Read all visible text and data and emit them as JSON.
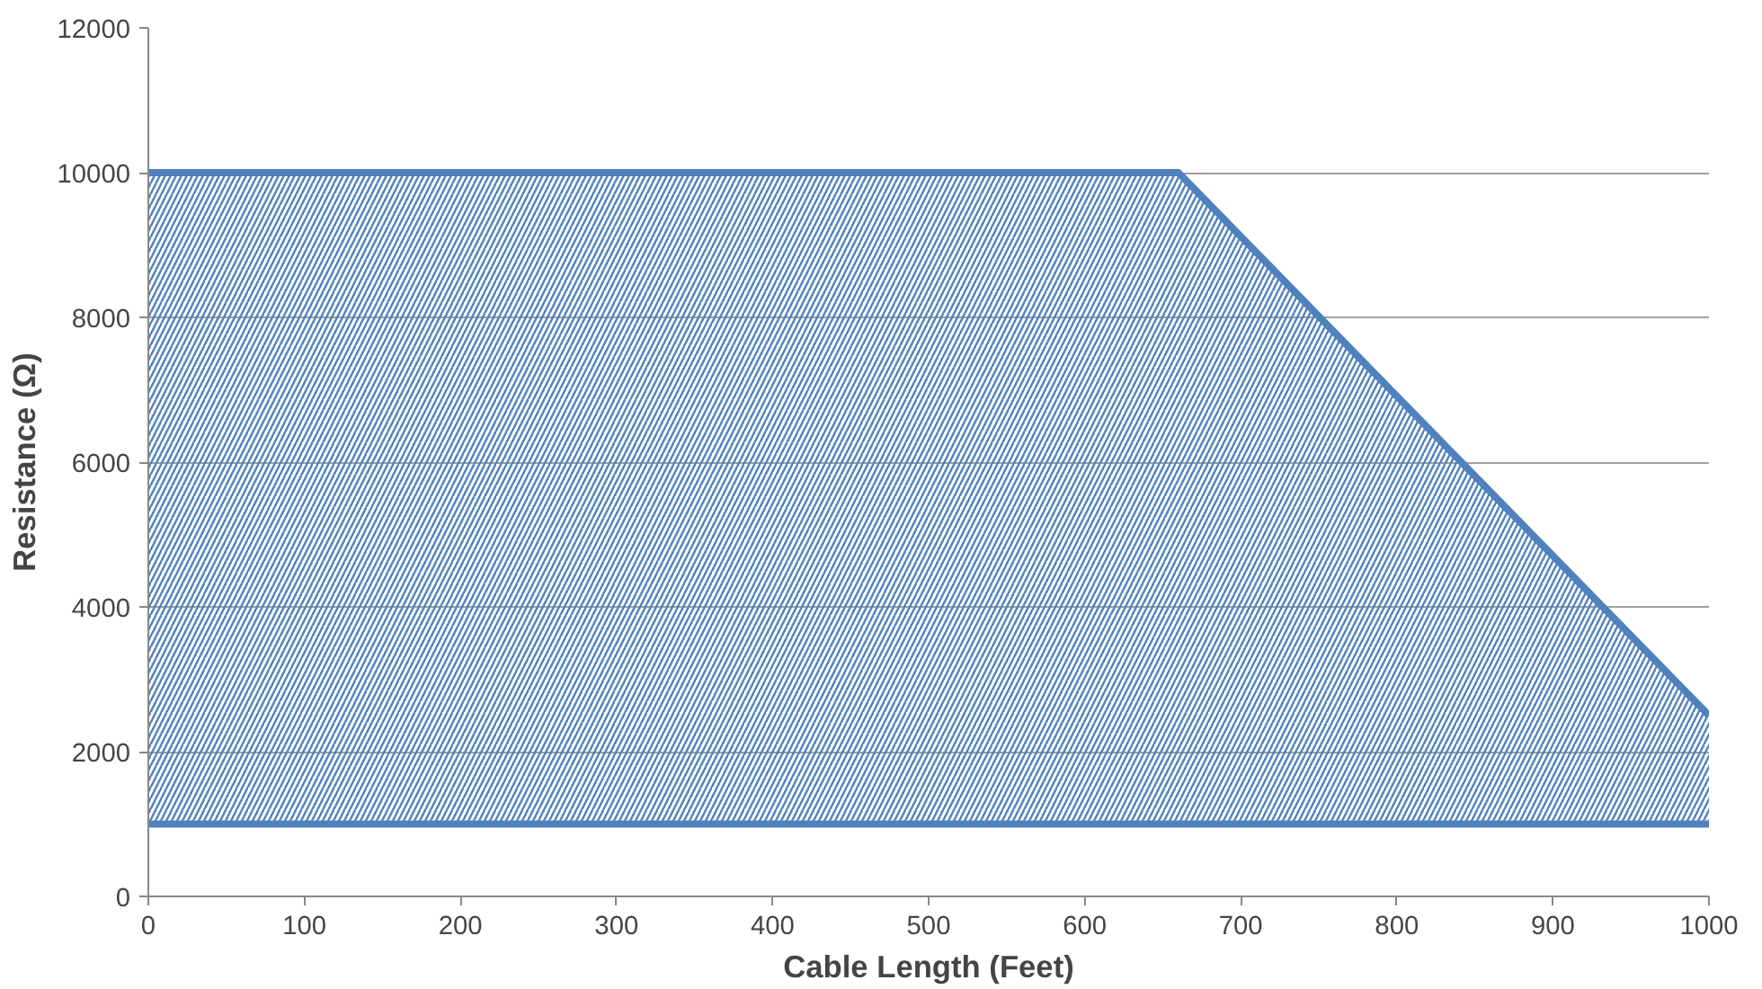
{
  "chart_data": {
    "type": "line",
    "xlabel": "Cable Length (Feet)",
    "ylabel": "Resistance (Ω)",
    "series": [
      {
        "color": "#4f81bd",
        "x": [
          0,
          660,
          1000
        ],
        "values": [
          10000,
          10000,
          2500
        ],
        "lower": [
          1000,
          1000,
          1000
        ],
        "upper": [
          10000,
          10000,
          2500
        ]
      },
      {
        "color": "#4f81bd",
        "x": [
          0,
          1000
        ],
        "values": [
          1000,
          1000
        ]
      }
    ],
    "xlim": [
      0,
      1000
    ],
    "xticks": [
      0,
      100,
      200,
      300,
      400,
      500,
      600,
      700,
      800,
      900,
      1000
    ],
    "ylim": [
      0,
      12000
    ],
    "yticks": [
      0,
      2000,
      4000,
      6000,
      8000,
      10000,
      12000
    ],
    "grid": "y",
    "marker": "none",
    "line_style": "solid"
  }
}
